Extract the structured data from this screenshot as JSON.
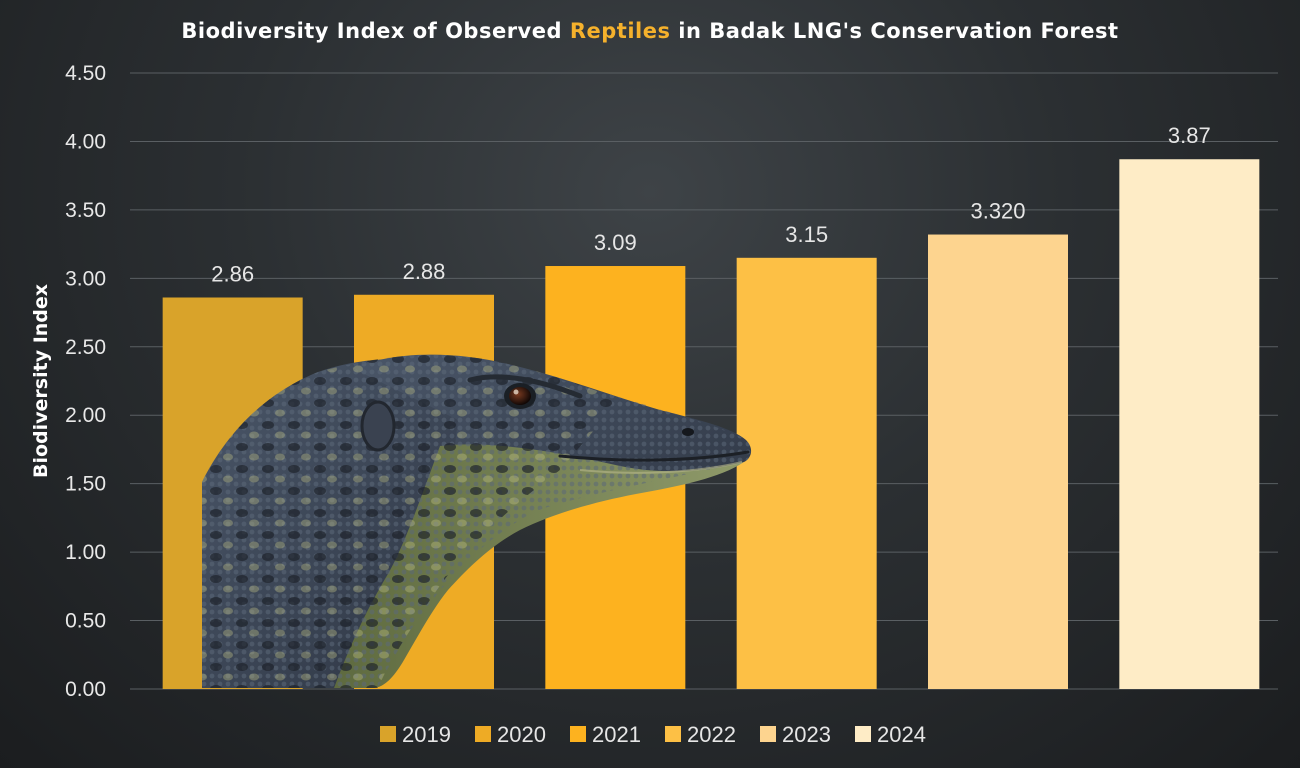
{
  "chart_data": {
    "type": "bar",
    "title_parts": [
      "Biodiversity Index of Observed ",
      "Reptiles",
      " in Badak LNG's Conservation Forest"
    ],
    "ylabel": "Biodiversity Index",
    "xlabel": "",
    "ylim": [
      0,
      4.5
    ],
    "yticks": [
      "0.00",
      "0.50",
      "1.00",
      "1.50",
      "2.00",
      "2.50",
      "3.00",
      "3.50",
      "4.00",
      "4.50"
    ],
    "categories": [
      "2019",
      "2020",
      "2021",
      "2022",
      "2023",
      "2024"
    ],
    "values": [
      2.86,
      2.88,
      3.09,
      3.15,
      3.32,
      3.87
    ],
    "data_labels": [
      "2.86",
      "2.88",
      "3.09",
      "3.15",
      "3.320",
      "3.87"
    ],
    "colors": [
      "#d9a32a",
      "#eeab25",
      "#fdb21f",
      "#fdc045",
      "#fdd48f",
      "#feecc6"
    ],
    "grid": true,
    "legend_position": "bottom",
    "accent_color": "#f5b12c",
    "decoration": "monitor-lizard-photo"
  }
}
